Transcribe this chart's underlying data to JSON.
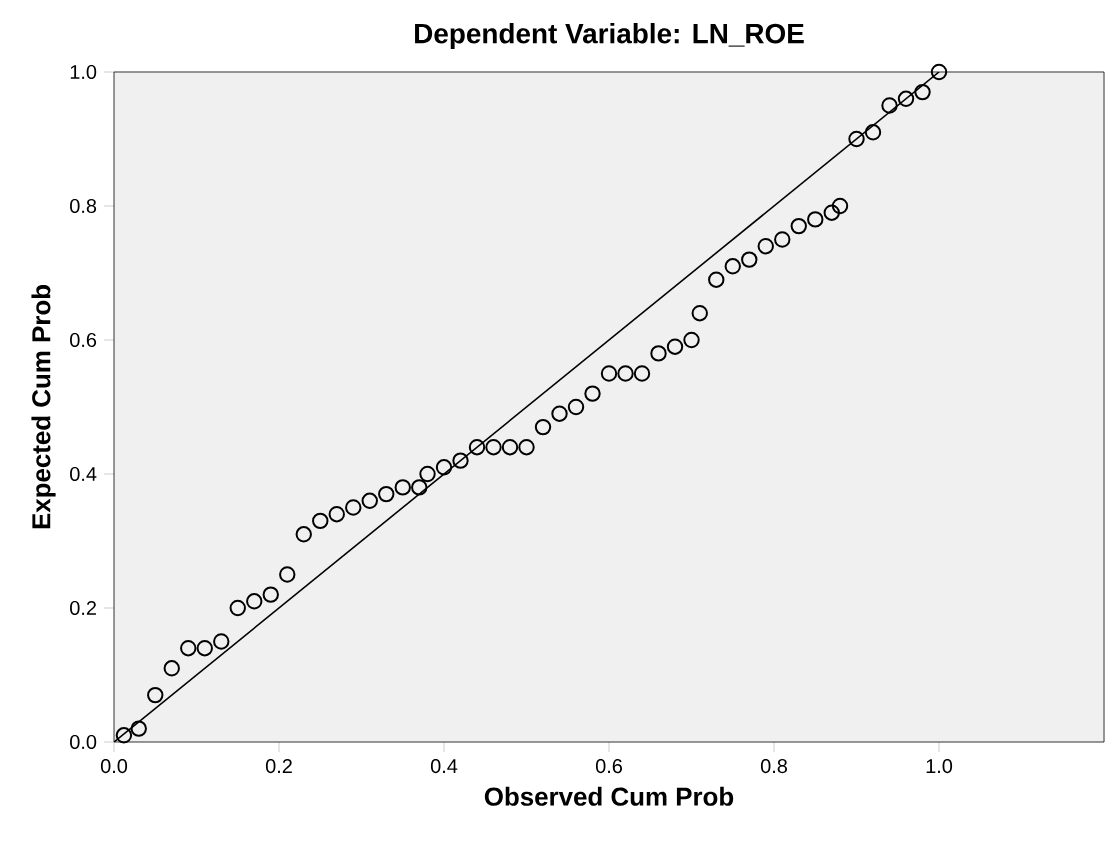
{
  "chart_data": {
    "type": "scatter",
    "title": "Dependent Variable: LN_ROE",
    "xlabel": "Observed Cum Prob",
    "ylabel": "Expected Cum Prob",
    "xlim": [
      0,
      1.2
    ],
    "ylim": [
      0,
      1
    ],
    "xticks": [
      {
        "value": 0,
        "label": "0.0"
      },
      {
        "value": 0.2,
        "label": "0.2"
      },
      {
        "value": 0.4,
        "label": "0.4"
      },
      {
        "value": 0.6,
        "label": "0.6"
      },
      {
        "value": 0.8,
        "label": "0.8"
      },
      {
        "value": 1,
        "label": "1.0"
      }
    ],
    "yticks": [
      {
        "value": 0,
        "label": "0.0"
      },
      {
        "value": 0.2,
        "label": "0.2"
      },
      {
        "value": 0.4,
        "label": "0.4"
      },
      {
        "value": 0.6,
        "label": "0.6"
      },
      {
        "value": 0.8,
        "label": "0.8"
      },
      {
        "value": 1,
        "label": "1.0"
      }
    ],
    "grid": false,
    "series": [
      {
        "marker": "circle",
        "color": "#000000",
        "x": [
          0.012,
          0.03,
          0.05,
          0.07,
          0.09,
          0.11,
          0.13,
          0.15,
          0.17,
          0.19,
          0.21,
          0.23,
          0.25,
          0.27,
          0.29,
          0.31,
          0.33,
          0.35,
          0.37,
          0.38,
          0.4,
          0.42,
          0.44,
          0.46,
          0.48,
          0.5,
          0.52,
          0.54,
          0.56,
          0.58,
          0.6,
          0.62,
          0.64,
          0.66,
          0.68,
          0.7,
          0.71,
          0.73,
          0.75,
          0.77,
          0.79,
          0.81,
          0.83,
          0.85,
          0.87,
          0.88,
          0.9,
          0.92,
          0.94,
          0.96,
          0.98,
          1.0
        ],
        "values": [
          0.01,
          0.02,
          0.07,
          0.11,
          0.14,
          0.14,
          0.15,
          0.2,
          0.21,
          0.22,
          0.25,
          0.31,
          0.33,
          0.34,
          0.35,
          0.36,
          0.37,
          0.38,
          0.38,
          0.4,
          0.41,
          0.42,
          0.44,
          0.44,
          0.44,
          0.44,
          0.47,
          0.49,
          0.5,
          0.52,
          0.55,
          0.55,
          0.55,
          0.58,
          0.59,
          0.6,
          0.64,
          0.69,
          0.71,
          0.72,
          0.74,
          0.75,
          0.77,
          0.78,
          0.79,
          0.8,
          0.9,
          0.91,
          0.95,
          0.96,
          0.97,
          1.0
        ]
      },
      {
        "type": "line",
        "marker": "none",
        "line_style": "solid",
        "color": "#000000",
        "x": [
          0,
          1
        ],
        "values": [
          0,
          1
        ]
      }
    ]
  }
}
